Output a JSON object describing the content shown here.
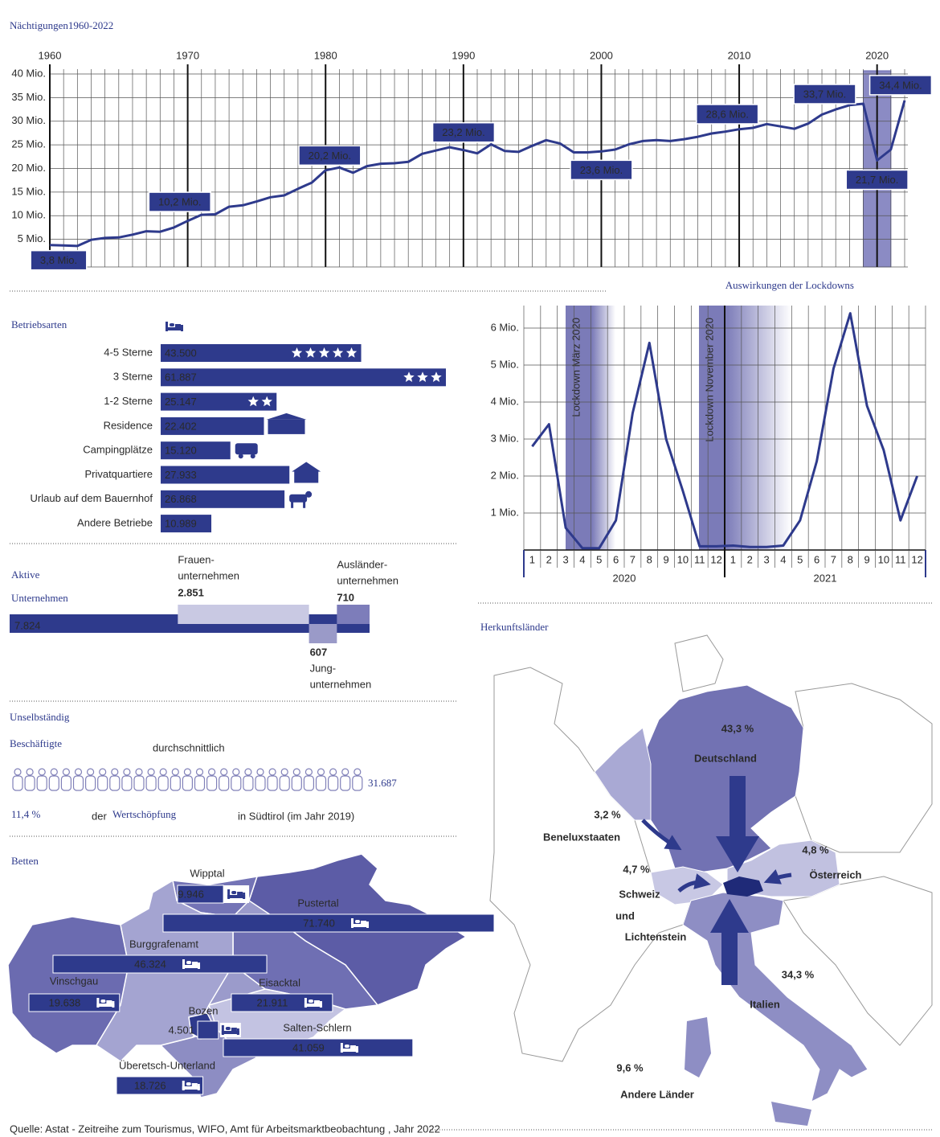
{
  "chart_data": [
    {
      "type": "line",
      "title": "Nächtigungen1960-2022",
      "x": [
        1960,
        1961,
        1962,
        1963,
        1964,
        1965,
        1966,
        1967,
        1968,
        1969,
        1970,
        1971,
        1972,
        1973,
        1974,
        1975,
        1976,
        1977,
        1978,
        1979,
        1980,
        1981,
        1982,
        1983,
        1984,
        1985,
        1986,
        1987,
        1988,
        1989,
        1990,
        1991,
        1992,
        1993,
        1994,
        1995,
        1996,
        1997,
        1998,
        1999,
        2000,
        2001,
        2002,
        2003,
        2004,
        2005,
        2006,
        2007,
        2008,
        2009,
        2010,
        2011,
        2012,
        2013,
        2014,
        2015,
        2016,
        2017,
        2018,
        2019,
        2020,
        2021,
        2022
      ],
      "values": [
        3.8,
        3.7,
        3.6,
        4.9,
        5.3,
        5.4,
        6.0,
        6.7,
        6.6,
        7.5,
        8.9,
        10.2,
        10.3,
        11.9,
        12.2,
        13.0,
        13.9,
        14.3,
        15.7,
        17.0,
        19.6,
        20.2,
        19.1,
        20.5,
        21.0,
        21.1,
        21.4,
        23.1,
        23.8,
        24.5,
        23.9,
        23.2,
        25.1,
        23.7,
        23.5,
        24.8,
        26.0,
        25.3,
        23.4,
        23.4,
        23.6,
        24.0,
        25.1,
        25.8,
        26.0,
        25.8,
        26.2,
        26.7,
        27.4,
        27.8,
        28.3,
        28.6,
        29.4,
        28.9,
        28.4,
        29.5,
        31.4,
        32.5,
        33.4,
        33.7,
        21.7,
        24.0,
        34.4
      ],
      "value_labels": [
        "3,8 Mio.",
        null,
        null,
        null,
        null,
        null,
        null,
        null,
        null,
        null,
        null,
        "10,2 Mio.",
        null,
        null,
        null,
        null,
        null,
        null,
        null,
        null,
        null,
        "20,2 Mio.",
        null,
        null,
        null,
        null,
        null,
        null,
        null,
        null,
        null,
        "23,2 Mio.",
        null,
        null,
        null,
        null,
        null,
        null,
        null,
        null,
        "23,6 Mio.",
        null,
        null,
        null,
        null,
        null,
        null,
        null,
        null,
        null,
        null,
        "28,6 Mio.",
        null,
        null,
        null,
        null,
        null,
        null,
        null,
        "33,7 Mio.",
        "21,7 Mio.",
        null,
        "34,4 Mio."
      ],
      "color": "#2e3a8c",
      "xlim": [
        1960,
        2022
      ],
      "xticks": [
        1960,
        1970,
        1980,
        1990,
        2000,
        2010,
        2020
      ],
      "ylim": [
        0,
        40
      ],
      "yticks": [
        {
          "value": 5,
          "label": "5 Mio."
        },
        {
          "value": 10,
          "label": "10 Mio."
        },
        {
          "value": 15,
          "label": "15 Mio."
        },
        {
          "value": 20,
          "label": "20 Mio."
        },
        {
          "value": 25,
          "label": "25 Mio."
        },
        {
          "value": 30,
          "label": "30 Mio."
        },
        {
          "value": 35,
          "label": "35 Mio."
        },
        {
          "value": 40,
          "label": "40 Mio."
        }
      ],
      "grid": true
    },
    {
      "type": "line",
      "title": "Auswirkungen der Lockdowns",
      "categories": [
        "1",
        "2",
        "3",
        "4",
        "5",
        "6",
        "7",
        "8",
        "9",
        "10",
        "11",
        "12",
        "1",
        "2",
        "3",
        "4",
        "5",
        "6",
        "7",
        "8",
        "9",
        "10",
        "11",
        "12"
      ],
      "groups": [
        "2020",
        "2021"
      ],
      "values": [
        2.8,
        3.4,
        0.6,
        0.05,
        0.05,
        0.8,
        3.7,
        5.6,
        3.0,
        1.6,
        0.1,
        0.1,
        0.12,
        0.08,
        0.08,
        0.12,
        0.8,
        2.4,
        4.9,
        6.4,
        3.9,
        2.7,
        0.8,
        2.0
      ],
      "color": "#2e3a8c",
      "ylim": [
        0,
        6.5
      ],
      "yticks": [
        {
          "value": 1,
          "label": "1 Mio."
        },
        {
          "value": 2,
          "label": "2 Mio."
        },
        {
          "value": 3,
          "label": "3 Mio."
        },
        {
          "value": 4,
          "label": "4 Mio."
        },
        {
          "value": 5,
          "label": "5 Mio."
        },
        {
          "value": 6,
          "label": "6 Mio."
        }
      ],
      "annotations": [
        "Lockdown März 2020",
        "Lockdown November 2020"
      ],
      "grid": true
    },
    {
      "type": "hbar",
      "title": "Betriebsarten",
      "categories": [
        "4-5 Sterne",
        "3 Sterne",
        "1-2 Sterne",
        "Residence",
        "Campingplätze",
        "Privatquartiere",
        "Urlaub auf dem Bauernhof",
        "Andere Betriebe"
      ],
      "values": [
        43500,
        61887,
        25147,
        22402,
        15120,
        27933,
        26868,
        10989
      ],
      "value_labels": [
        "43.500",
        "61.887",
        "25.147",
        "22.402",
        "15.120",
        "27.933",
        "26.868",
        "10.989"
      ],
      "color": "#2e3a8c"
    },
    {
      "type": "overlap-bar",
      "title": [
        "Aktive",
        "Unternehmen"
      ],
      "total": {
        "value": 7824,
        "label": "7.824",
        "color": "#2e3a8c"
      },
      "segments": [
        {
          "name": [
            "Frauen-",
            "unternehmen"
          ],
          "value": 2851,
          "label": "2.851",
          "color": "#c9c9e3"
        },
        {
          "name": [
            "Jung-",
            "unternehmen"
          ],
          "value": 607,
          "color": "#9a9ac8"
        },
        {
          "name": [
            "Ausländer-",
            "unternehmen"
          ],
          "value": 710,
          "color": "#7d7dba"
        }
      ]
    },
    {
      "type": "map-bar",
      "title": "Betten",
      "categories": [
        "Wipptal",
        "Pustertal",
        "Burggrafenamt",
        "Vinschgau",
        "Eisacktal",
        "Bozen",
        "Salten-Schlern",
        "Überetsch-Unterland"
      ],
      "values": [
        9946,
        71740,
        46324,
        19638,
        21911,
        4501,
        41059,
        18726
      ],
      "value_labels": [
        "9.946",
        "71.740",
        "46.324",
        "19.638",
        "21.911",
        "4.501",
        "41.059",
        "18.726"
      ],
      "color": "#2e3a8c"
    }
  ],
  "employees": {
    "title": [
      "Unselbständig",
      "Beschäftigte"
    ],
    "note": "durchschnittlich",
    "count": "31.687",
    "share": "11,4 %",
    "share_text": [
      "der",
      "Wertschöpfung",
      "in Südtirol (im Jahr 2019)"
    ]
  },
  "origin": {
    "title": "Herkunftsländer",
    "countries": [
      {
        "label": "43,3 %",
        "name": [
          "Deutschland"
        ]
      },
      {
        "label": "3,2 %",
        "name": [
          "Beneluxstaaten"
        ]
      },
      {
        "label": "4,7 %",
        "name": [
          "Schweiz",
          "und",
          "Lichtenstein"
        ]
      },
      {
        "label": "4,8 %",
        "name": [
          "Österreich"
        ]
      },
      {
        "label": "34,3 %",
        "name": [
          "Italien"
        ]
      },
      {
        "label": "9,6 %",
        "name": [
          "Andere Länder"
        ]
      }
    ]
  },
  "source": "Quelle: Astat - Zeitreihe zum Tourismus, WIFO, Amt für Arbeitsmarktbeobachtung , Jahr 2022"
}
